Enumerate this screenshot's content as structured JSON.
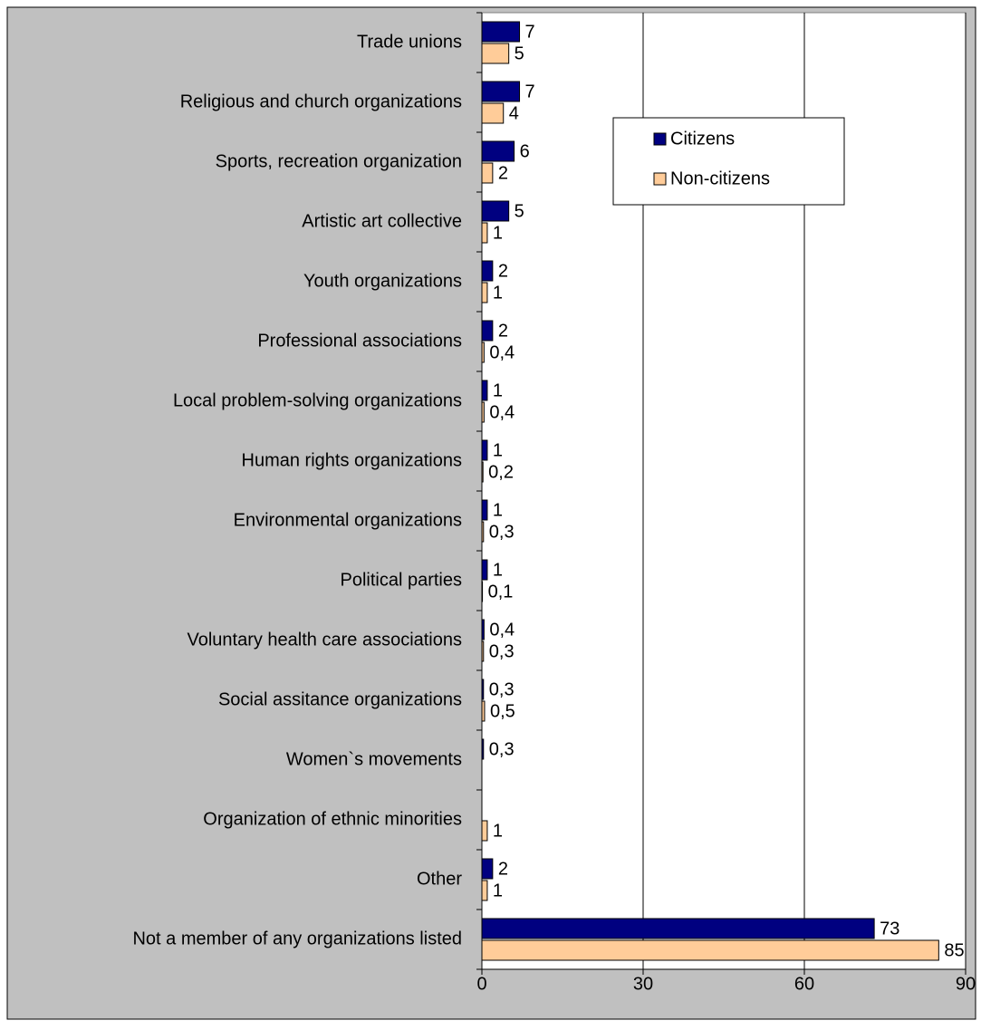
{
  "chart_data": {
    "type": "hbar",
    "categories": [
      "Trade unions",
      "Religious and church organizations",
      "Sports, recreation organization",
      "Artistic art collective",
      "Youth organizations",
      "Professional associations",
      "Local problem-solving organizations",
      "Human rights organizations",
      "Environmental organizations",
      "Political parties",
      "Voluntary health care associations",
      "Social assitance organizations",
      "Women`s movements",
      "Organization of ethnic minorities",
      "Other",
      "Not a member of any organizations listed"
    ],
    "series": [
      {
        "name": "Citizens",
        "color": "#000080",
        "values": [
          7,
          7,
          6,
          5,
          2,
          2,
          1,
          1,
          1,
          1,
          0.4,
          0.3,
          0.3,
          null,
          2,
          73
        ],
        "value_labels": [
          "7",
          "7",
          "6",
          "5",
          "2",
          "2",
          "1",
          "1",
          "1",
          "1",
          "0,4",
          "0,3",
          "0,3",
          null,
          "2",
          "73"
        ]
      },
      {
        "name": "Non-citizens",
        "color": "#ffcc99",
        "values": [
          5,
          4,
          2,
          1,
          1,
          0.4,
          0.4,
          0.2,
          0.3,
          0.1,
          0.3,
          0.5,
          null,
          1,
          1,
          85
        ],
        "value_labels": [
          "5",
          "4",
          "2",
          "1",
          "1",
          "0,4",
          "0,4",
          "0,2",
          "0,3",
          "0,1",
          "0,3",
          "0,5",
          null,
          "1",
          "1",
          "85"
        ]
      }
    ],
    "xlim": [
      0,
      90
    ],
    "xticks": [
      0,
      30,
      60,
      90
    ],
    "grid": true,
    "legend": "upper right"
  }
}
